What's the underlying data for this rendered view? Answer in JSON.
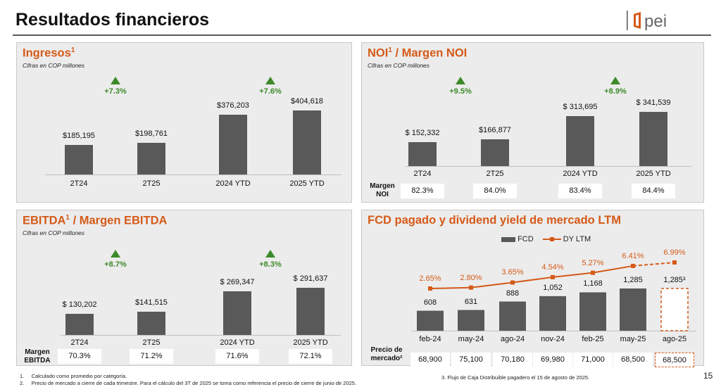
{
  "header": {
    "title": "Resultados financieros",
    "logo_text": "pei"
  },
  "ingresos": {
    "title": "Ingresos",
    "sup": "1",
    "subtitle": "Cifras en COP millones",
    "growth": [
      "+7.3%",
      "+7.6%"
    ],
    "categories": [
      "2T24",
      "2T25",
      "2024 YTD",
      "2025 YTD"
    ],
    "value_labels": [
      "$185,195",
      "$198,761",
      "$376,203",
      "$404,618"
    ],
    "values": [
      185195,
      198761,
      376203,
      404618
    ]
  },
  "noi": {
    "title_a": "NOI",
    "sup": "1",
    "title_b": " / Margen NOI",
    "subtitle": "Cifras en COP millones",
    "growth": [
      "+9.5%",
      "+8.9%"
    ],
    "categories": [
      "2T24",
      "2T25",
      "2024 YTD",
      "2025 YTD"
    ],
    "value_labels": [
      "$ 152,332",
      "$166,877",
      "$ 313,695",
      "$ 341,539"
    ],
    "values": [
      152332,
      166877,
      313695,
      341539
    ],
    "margin_label_1": "Margen",
    "margin_label_2": "NOI",
    "margins": [
      "82.3%",
      "84.0%",
      "83.4%",
      "84.4%"
    ]
  },
  "ebitda": {
    "title_a": "EBITDA",
    "sup": "1",
    "title_b": " / Margen EBITDA",
    "subtitle": "Cifras en COP millones",
    "growth": [
      "+8.7%",
      "+8.3%"
    ],
    "categories": [
      "2T24",
      "2T25",
      "2024 YTD",
      "2025 YTD"
    ],
    "value_labels": [
      "$ 130,202",
      "$141,515",
      "$ 269,347",
      "$ 291,637"
    ],
    "values": [
      130202,
      141515,
      269347,
      291637
    ],
    "margin_label_1": "Margen",
    "margin_label_2": "EBITDA",
    "margins": [
      "70.3%",
      "71.2%",
      "71.6%",
      "72.1%"
    ]
  },
  "fcd": {
    "title": "FCD pagado y dividend yield de mercado LTM",
    "legend_bar": "FCD",
    "legend_line": "DY LTM",
    "categories": [
      "feb-24",
      "may-24",
      "ago-24",
      "nov-24",
      "feb-25",
      "may-25",
      "ago-25"
    ],
    "bar_labels": [
      "608",
      "631",
      "888",
      "1,052",
      "1,168",
      "1,285",
      "1,285³"
    ],
    "bar_values": [
      608,
      631,
      888,
      1052,
      1168,
      1285,
      1285
    ],
    "dy_labels": [
      "2.65%",
      "2.80%",
      "3.65%",
      "4.54%",
      "5.27%",
      "6.41%",
      "6.99%"
    ],
    "dy_values": [
      2.65,
      2.8,
      3.65,
      4.54,
      5.27,
      6.41,
      6.99
    ],
    "price_label_1": "Precio de",
    "price_label_2": "mercado²",
    "prices": [
      "68,900",
      "75,100",
      "70,180",
      "69,980",
      "71,000",
      "68,500",
      "68,500"
    ]
  },
  "colors": {
    "accent": "#d55a18",
    "bar": "#595959",
    "growth": "#3d8a2a",
    "panel": "#ececec"
  },
  "footnotes": {
    "n1_num": "1.",
    "n1": "Calculado como promedio por categoría.",
    "n2_num": "2.",
    "n2": "Precio de mercado a cierre de cada trimestre. Para el cálculo del 3T de 2025 se toma como referencia el precio de cierre de junio de 2025.",
    "n3": "3. Flujo de Caja Distribuible pagadero el 15 de agosto de 2025."
  },
  "page_number": "15",
  "chart_data": [
    {
      "type": "bar",
      "title": "Ingresos",
      "categories": [
        "2T24",
        "2T25",
        "2024 YTD",
        "2025 YTD"
      ],
      "values": [
        185195,
        198761,
        376203,
        404618
      ]
    },
    {
      "type": "bar",
      "title": "NOI / Margen NOI",
      "categories": [
        "2T24",
        "2T25",
        "2024 YTD",
        "2025 YTD"
      ],
      "values": [
        152332,
        166877,
        313695,
        341539
      ]
    },
    {
      "type": "bar",
      "title": "EBITDA / Margen EBITDA",
      "categories": [
        "2T24",
        "2T25",
        "2024 YTD",
        "2025 YTD"
      ],
      "values": [
        130202,
        141515,
        269347,
        291637
      ]
    },
    {
      "type": "bar",
      "title": "FCD pagado y dividend yield de mercado LTM",
      "categories": [
        "feb-24",
        "may-24",
        "ago-24",
        "nov-24",
        "feb-25",
        "may-25",
        "ago-25"
      ],
      "series": [
        {
          "name": "FCD",
          "values": [
            608,
            631,
            888,
            1052,
            1168,
            1285,
            1285
          ]
        },
        {
          "name": "DY LTM",
          "values": [
            2.65,
            2.8,
            3.65,
            4.54,
            5.27,
            6.41,
            6.99
          ]
        }
      ]
    }
  ]
}
